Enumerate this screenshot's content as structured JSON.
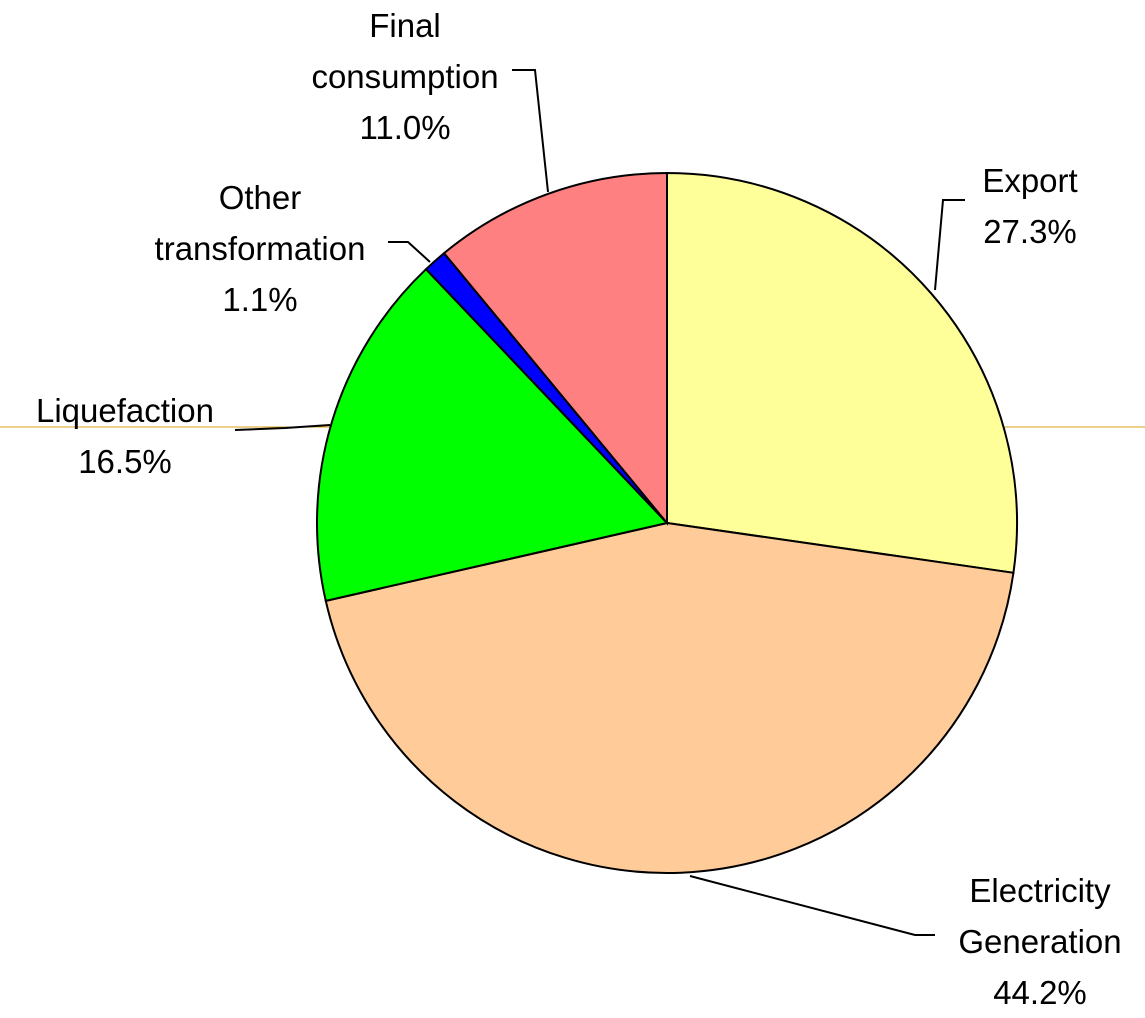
{
  "chart_data": {
    "type": "pie",
    "categories": [
      "Export",
      "Electricity Generation",
      "Liquefaction",
      "Other transformation",
      "Final consumption"
    ],
    "values": [
      27.3,
      44.2,
      16.5,
      1.1,
      11.0
    ],
    "value_labels": [
      "27.3%",
      "44.2%",
      "16.5%",
      "1.1%",
      "11.0%"
    ],
    "colors": [
      "#ffff99",
      "#ffcc99",
      "#00ff00",
      "#0000ff",
      "#ff8080"
    ]
  }
}
